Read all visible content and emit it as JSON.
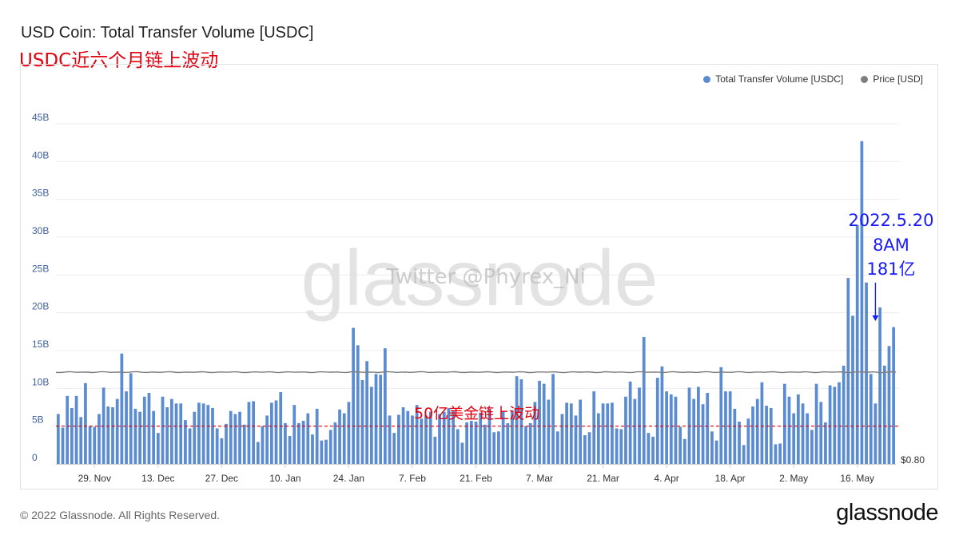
{
  "header": {
    "title": "USD Coin: Total Transfer Volume [USDC]",
    "subtitle": "USDC近六个月链上波动"
  },
  "legend": [
    {
      "label": "Total Transfer Volume [USDC]",
      "color": "#5b8cd1"
    },
    {
      "label": "Price [USD]",
      "color": "#7f7f7f"
    }
  ],
  "watermark": {
    "brand": "glassnode",
    "credit": "Twitter @Phyrex_Ni"
  },
  "annotations": {
    "threshold_label": "50亿美金链上波动",
    "threshold_color": "#e3000f",
    "callout_lines": [
      "2022.5.20",
      "8AM",
      "181亿"
    ],
    "callout_color": "#1a1aff"
  },
  "footer": {
    "copyright": "© 2022 Glassnode. All Rights Reserved.",
    "logo": "glassnode"
  },
  "chart_data": {
    "type": "bar",
    "title": "USD Coin: Total Transfer Volume [USDC]",
    "y_unit": "B (USDC)",
    "ylim": [
      0,
      45
    ],
    "y_ticks": [
      "0",
      "5B",
      "10B",
      "15B",
      "20B",
      "25B",
      "30B",
      "35B",
      "40B",
      "45B"
    ],
    "grid": "horizontal",
    "legend_position": "top-right",
    "x_start": "2021-11-21",
    "x_ticks": [
      {
        "date": "2021-11-29",
        "label": "29. Nov"
      },
      {
        "date": "2021-12-13",
        "label": "13. Dec"
      },
      {
        "date": "2021-12-27",
        "label": "27. Dec"
      },
      {
        "date": "2022-01-10",
        "label": "10. Jan"
      },
      {
        "date": "2022-01-24",
        "label": "24. Jan"
      },
      {
        "date": "2022-02-07",
        "label": "7. Feb"
      },
      {
        "date": "2022-02-21",
        "label": "21. Feb"
      },
      {
        "date": "2022-03-07",
        "label": "7. Mar"
      },
      {
        "date": "2022-03-21",
        "label": "21. Mar"
      },
      {
        "date": "2022-04-04",
        "label": "4. Apr"
      },
      {
        "date": "2022-04-18",
        "label": "18. Apr"
      },
      {
        "date": "2022-05-02",
        "label": "2. May"
      },
      {
        "date": "2022-05-16",
        "label": "16. May"
      }
    ],
    "series": [
      {
        "name": "Total Transfer Volume [USDC]",
        "color": "#5b8cd1",
        "values": [
          6.6,
          4.8,
          9.0,
          7.4,
          9.0,
          6.2,
          10.7,
          5.0,
          4.9,
          6.6,
          10.1,
          7.6,
          7.5,
          8.6,
          14.6,
          9.6,
          12.0,
          7.3,
          6.9,
          8.9,
          9.4,
          7.0,
          4.1,
          8.9,
          7.5,
          8.6,
          8.0,
          8.0,
          5.8,
          4.7,
          6.9,
          8.1,
          8.0,
          7.8,
          7.4,
          4.7,
          3.4,
          5.3,
          7.0,
          6.6,
          6.9,
          5.2,
          8.2,
          8.3,
          2.9,
          5.0,
          6.4,
          8.1,
          8.4,
          9.5,
          5.4,
          3.7,
          7.8,
          5.4,
          5.7,
          6.7,
          3.9,
          7.3,
          3.1,
          3.2,
          4.5,
          5.5,
          7.2,
          6.7,
          8.2,
          18.0,
          15.7,
          11.1,
          13.6,
          10.2,
          11.9,
          11.8,
          15.3,
          6.4,
          4.1,
          6.5,
          7.5,
          7.0,
          6.4,
          7.8,
          6.0,
          6.4,
          6.9,
          3.6,
          6.6,
          6.9,
          7.4,
          7.1,
          4.6,
          2.8,
          5.5,
          5.7,
          5.6,
          6.8,
          5.2,
          7.3,
          4.2,
          4.3,
          7.0,
          5.4,
          7.1,
          11.6,
          11.2,
          5.0,
          5.4,
          8.2,
          11.0,
          10.6,
          8.5,
          11.9,
          4.3,
          6.6,
          8.1,
          8.0,
          6.4,
          8.5,
          3.8,
          4.2,
          9.6,
          6.7,
          8.0,
          8.0,
          8.1,
          4.7,
          4.6,
          8.9,
          10.9,
          8.6,
          10.1,
          16.8,
          4.1,
          3.6,
          11.4,
          12.9,
          9.6,
          9.2,
          8.9,
          4.9,
          3.3,
          10.1,
          8.6,
          10.2,
          7.9,
          9.4,
          4.3,
          3.1,
          12.8,
          9.6,
          9.6,
          7.3,
          5.6,
          2.5,
          6.0,
          7.6,
          8.6,
          10.8,
          7.7,
          7.4,
          2.6,
          2.7,
          10.6,
          8.9,
          6.7,
          9.2,
          8.0,
          6.7,
          4.5,
          10.6,
          8.2,
          5.5,
          10.4,
          10.2,
          10.8,
          13.0,
          24.6,
          19.6,
          31.6,
          42.7,
          24.0,
          11.9,
          8.0,
          20.7,
          13.0,
          15.6,
          18.1
        ]
      },
      {
        "name": "Price [USD]",
        "color": "#7f7f7f",
        "axis_label": "$0.80",
        "values": [
          1.0
        ]
      }
    ],
    "threshold": {
      "value": 5.0,
      "label": "50亿美金链上波动"
    },
    "callout": {
      "date": "2022-05-20",
      "value": 18.1,
      "lines": [
        "2022.5.20",
        "8AM",
        "181亿"
      ]
    }
  }
}
